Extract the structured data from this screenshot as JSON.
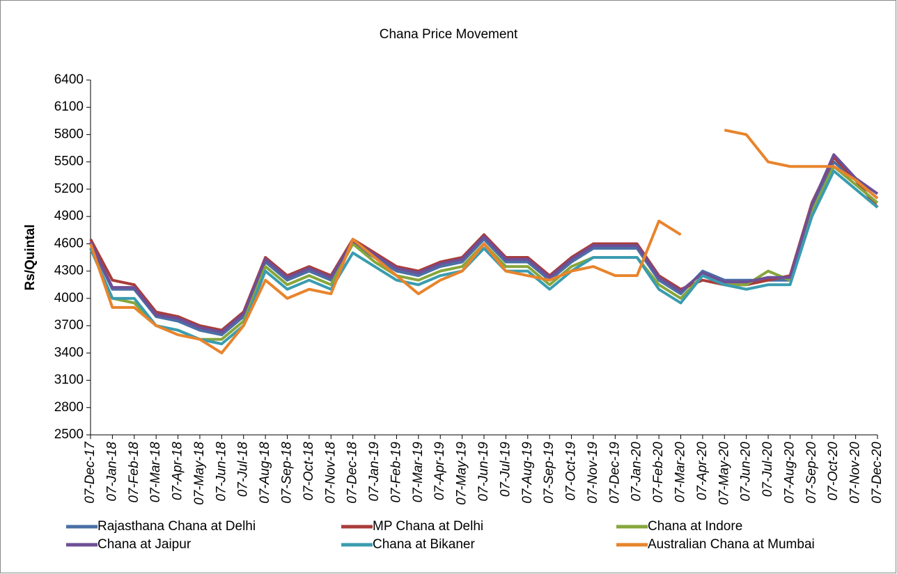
{
  "chart_data": {
    "type": "line",
    "title": "Chana  Price Movement",
    "y_label": "Rs/Quintal",
    "categories": [
      "07-Dec-17",
      "07-Jan-18",
      "07-Feb-18",
      "07-Mar-18",
      "07-Apr-18",
      "07-May-18",
      "07-Jun-18",
      "07-Jul-18",
      "07-Aug-18",
      "07-Sep-18",
      "07-Oct-18",
      "07-Nov-18",
      "07-Dec-18",
      "07-Jan-19",
      "07-Feb-19",
      "07-Mar-19",
      "07-Apr-19",
      "07-May-19",
      "07-Jun-19",
      "07-Jul-19",
      "07-Aug-19",
      "07-Sep-19",
      "07-Oct-19",
      "07-Nov-19",
      "07-Dec-19",
      "07-Jan-20",
      "07-Feb-20",
      "07-Mar-20",
      "07-Apr-20",
      "07-May-20",
      "07-Jun-20",
      "07-Jul-20",
      "07-Aug-20",
      "07-Sep-20",
      "07-Oct-20",
      "07-Nov-20",
      "07-Dec-20"
    ],
    "series": [
      {
        "name": "Rajasthana Chana at Delhi",
        "color": "#4a6fa5",
        "values": [
          4600,
          4100,
          4100,
          3800,
          3750,
          3650,
          3600,
          3800,
          4400,
          4200,
          4300,
          4200,
          4600,
          4450,
          4300,
          4250,
          4350,
          4400,
          4650,
          4400,
          4400,
          4200,
          4400,
          4550,
          4550,
          4550,
          4200,
          4050,
          4300,
          4200,
          4200,
          4200,
          4200,
          5000,
          5500,
          5300,
          5100
        ]
      },
      {
        "name": "MP Chana at Delhi",
        "color": "#a83c3a",
        "values": [
          4650,
          4200,
          4150,
          3850,
          3800,
          3700,
          3650,
          3850,
          4450,
          4250,
          4350,
          4250,
          4650,
          4500,
          4350,
          4300,
          4400,
          4450,
          4700,
          4450,
          4450,
          4250,
          4450,
          4600,
          4600,
          4600,
          4250,
          4100,
          4200,
          4150,
          4150,
          4200,
          4250,
          5050,
          5550,
          5300,
          5000
        ]
      },
      {
        "name": "Chana at Indore",
        "color": "#86a63c",
        "values": [
          4550,
          4000,
          3950,
          3700,
          3650,
          3550,
          3550,
          3750,
          4350,
          4150,
          4250,
          4150,
          4600,
          4400,
          4250,
          4200,
          4300,
          4350,
          4600,
          4350,
          4350,
          4150,
          4350,
          4450,
          4450,
          4450,
          4150,
          4000,
          4250,
          4150,
          4150,
          4300,
          4200,
          4950,
          5450,
          5250,
          5050
        ]
      },
      {
        "name": "Chana at Jaipur",
        "color": "#6e4f96",
        "values": [
          4620,
          4120,
          4120,
          3820,
          3780,
          3680,
          3630,
          3830,
          4430,
          4230,
          4330,
          4230,
          4630,
          4480,
          4330,
          4280,
          4380,
          4430,
          4680,
          4430,
          4430,
          4230,
          4430,
          4580,
          4580,
          4580,
          4230,
          4080,
          4280,
          4180,
          4180,
          4230,
          4230,
          5030,
          5580,
          5320,
          5150
        ]
      },
      {
        "name": "Chana at Bikaner",
        "color": "#3a9cb0",
        "values": [
          4550,
          4000,
          4000,
          3700,
          3650,
          3550,
          3500,
          3700,
          4300,
          4100,
          4200,
          4100,
          4500,
          4350,
          4200,
          4150,
          4250,
          4300,
          4550,
          4300,
          4300,
          4100,
          4300,
          4450,
          4450,
          4450,
          4100,
          3950,
          4250,
          4150,
          4100,
          4150,
          4150,
          4900,
          5400,
          5200,
          5000
        ]
      },
      {
        "name": "Australian Chana at Mumbai",
        "color": "#e8842c",
        "values": [
          4600,
          3900,
          3900,
          3700,
          3600,
          3550,
          3400,
          3700,
          4200,
          4000,
          4100,
          4050,
          4650,
          4450,
          4250,
          4050,
          4200,
          4300,
          4600,
          4300,
          4250,
          4200,
          4300,
          4350,
          4250,
          4250,
          4850,
          4700,
          null,
          5850,
          5800,
          5500,
          5450,
          5450,
          5450,
          5300,
          5100
        ]
      }
    ],
    "ylim": [
      2500,
      6400
    ],
    "yticks": [
      2500,
      2800,
      3100,
      3400,
      3700,
      4000,
      4300,
      4600,
      4900,
      5200,
      5500,
      5800,
      6100,
      6400
    ]
  }
}
